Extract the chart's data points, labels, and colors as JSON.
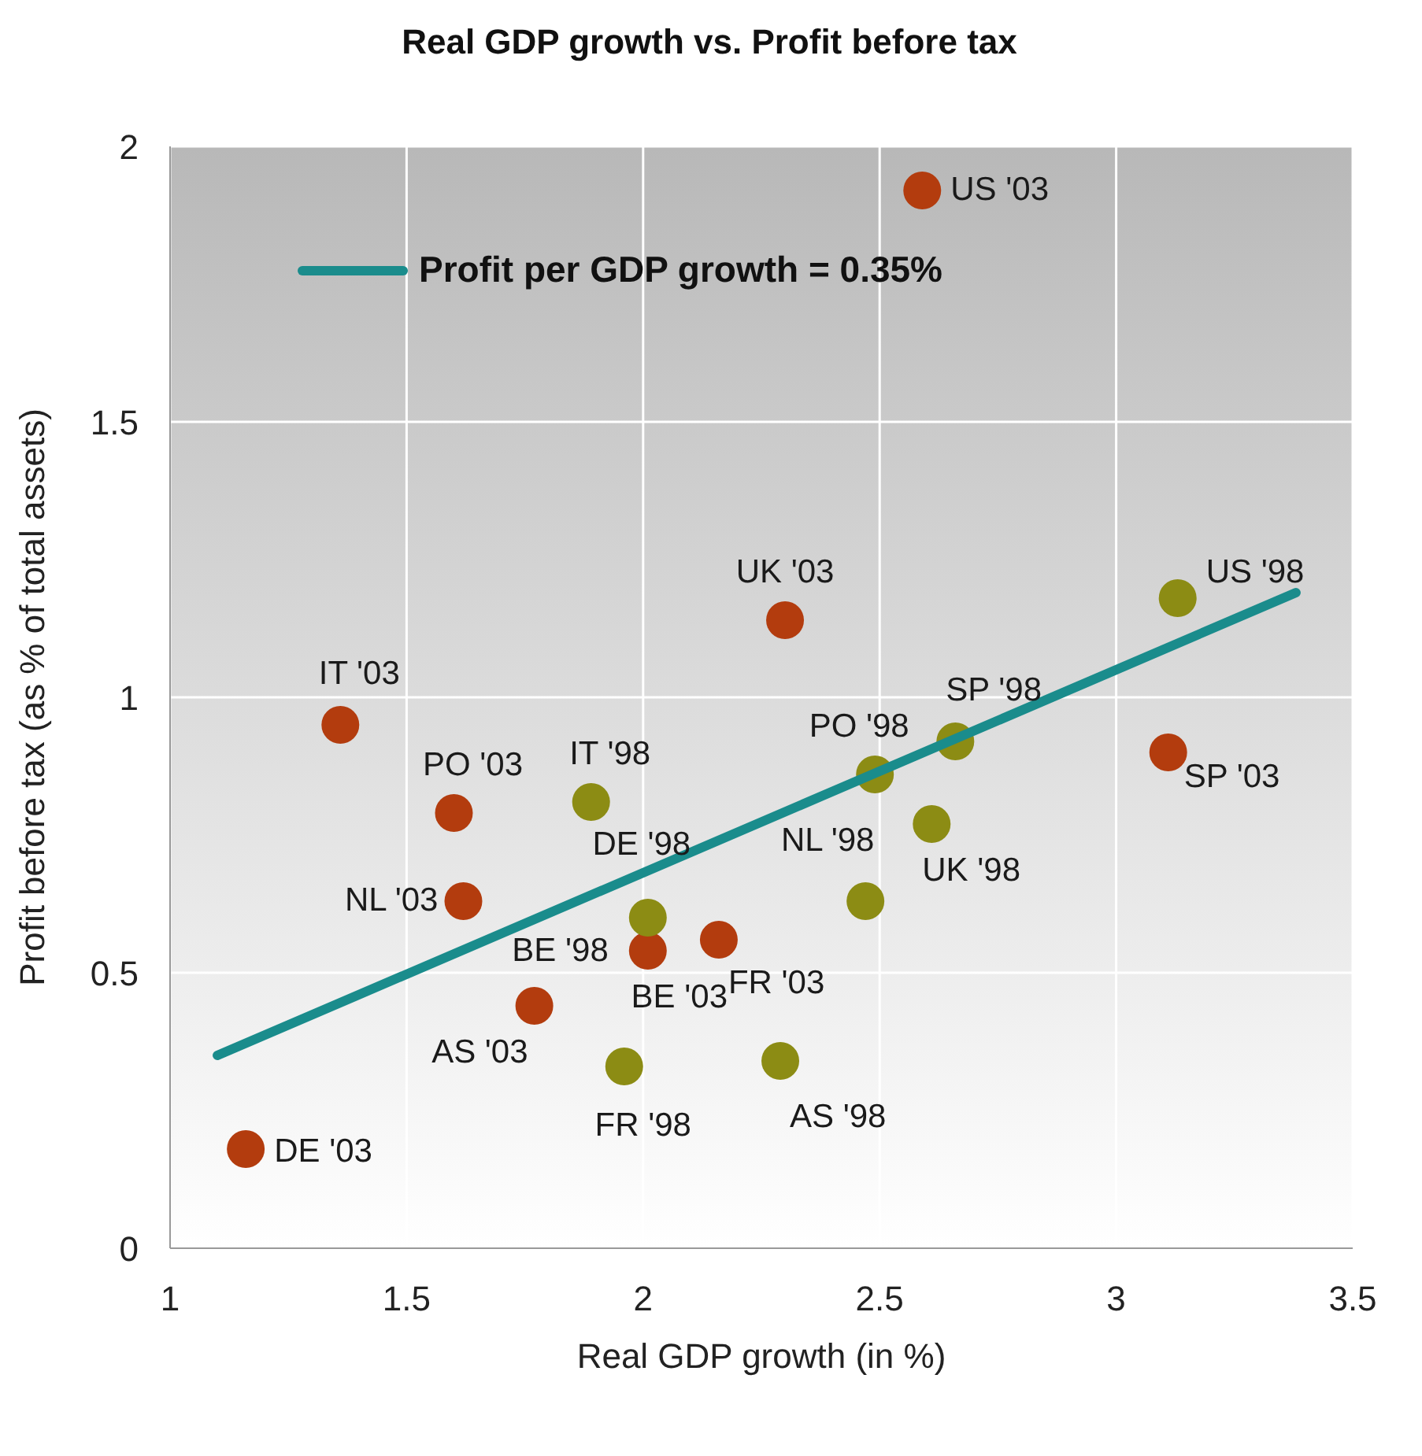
{
  "chart_data": {
    "type": "scatter",
    "title": "Real GDP growth vs. Profit before tax",
    "xlabel": "Real GDP growth (in %)",
    "ylabel": "Profit before tax (as % of total assets)",
    "xlim": [
      1,
      3.5
    ],
    "xticks": [
      1,
      1.5,
      2,
      2.5,
      3,
      3.5
    ],
    "ylim": [
      0,
      2
    ],
    "yticks": [
      0,
      0.5,
      1,
      1.5,
      2
    ],
    "grid": true,
    "legend": "top left",
    "marker": "circle",
    "series": [
      {
        "color": "#b33c0e",
        "x": [
          2.59,
          2.3,
          1.36,
          1.6,
          1.62,
          2.01,
          2.16,
          1.77,
          1.16,
          3.11
        ],
        "values": [
          1.92,
          1.14,
          0.95,
          0.79,
          0.63,
          0.54,
          0.56,
          0.44,
          0.18,
          0.9
        ]
      },
      {
        "color": "#8c8c14",
        "x": [
          3.13,
          2.66,
          2.49,
          1.89,
          2.61,
          2.47,
          2.01,
          2.0,
          1.96,
          2.29
        ],
        "values": [
          1.18,
          0.92,
          0.86,
          0.81,
          0.77,
          0.63,
          0.6,
          null,
          0.33,
          0.34
        ]
      },
      {
        "type": "line",
        "name": "Profit per GDP growth = 0.35%",
        "color": "#1a8c8c",
        "marker": "none",
        "x": [
          1.1,
          3.38
        ],
        "values": [
          0.35,
          1.19
        ]
      }
    ],
    "annotations": [
      {
        "text": "US '03",
        "x": 2.59,
        "y": 1.92
      },
      {
        "text": "UK '03",
        "x": 2.3,
        "y": 1.14
      },
      {
        "text": "IT '03",
        "x": 1.36,
        "y": 0.95
      },
      {
        "text": "PO '03",
        "x": 1.6,
        "y": 0.79
      },
      {
        "text": "NL '03",
        "x": 1.62,
        "y": 0.63
      },
      {
        "text": "BE '03",
        "x": 2.01,
        "y": 0.54
      },
      {
        "text": "FR '03",
        "x": 2.16,
        "y": 0.56
      },
      {
        "text": "AS '03",
        "x": 1.77,
        "y": 0.44
      },
      {
        "text": "DE '03",
        "x": 1.16,
        "y": 0.18
      },
      {
        "text": "SP '03",
        "x": 3.11,
        "y": 0.9
      },
      {
        "text": "US '98",
        "x": 3.13,
        "y": 1.18
      },
      {
        "text": "SP '98",
        "x": 2.66,
        "y": 0.92
      },
      {
        "text": "PO '98",
        "x": 2.49,
        "y": 0.86
      },
      {
        "text": "IT '98",
        "x": 1.89,
        "y": 0.81
      },
      {
        "text": "UK '98",
        "x": 2.61,
        "y": 0.77
      },
      {
        "text": "NL '98",
        "x": 2.47,
        "y": 0.63
      },
      {
        "text": "DE '98",
        "x": 2.01,
        "y": 0.6
      },
      {
        "text": "BE '98",
        "x": 2.0,
        "y": 0.59
      },
      {
        "text": "FR '98",
        "x": 1.96,
        "y": 0.33
      },
      {
        "text": "AS '98",
        "x": 2.29,
        "y": 0.34
      }
    ]
  }
}
